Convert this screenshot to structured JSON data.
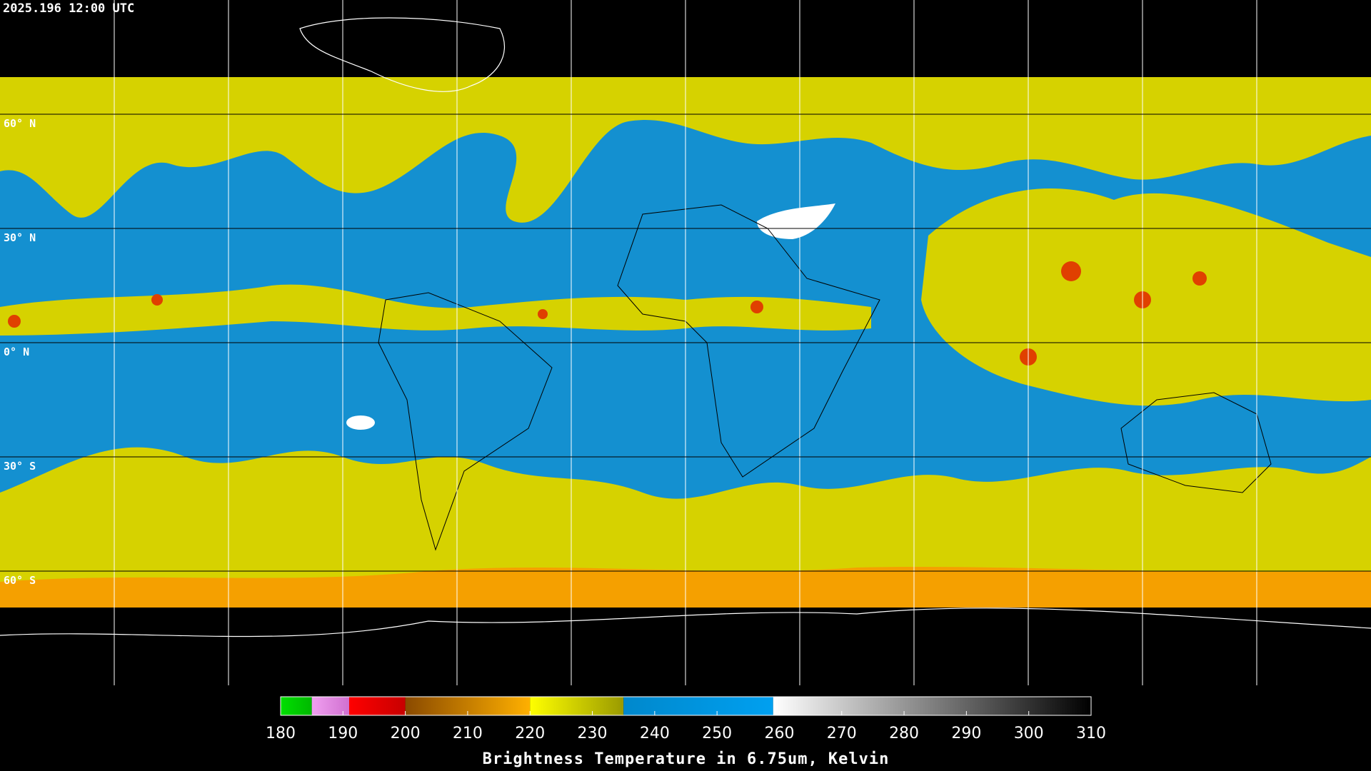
{
  "timestamp": "2025.196 12:00 UTC",
  "parallels": [
    {
      "value": 60,
      "label": "60° N"
    },
    {
      "value": 30,
      "label": "30° N"
    },
    {
      "value": 0,
      "label": "0° N"
    },
    {
      "value": -30,
      "label": "30° S"
    },
    {
      "value": -60,
      "label": "60° S"
    }
  ],
  "meridians": [
    -150,
    -120,
    -90,
    -60,
    -30,
    0,
    30,
    60,
    90,
    120,
    150
  ],
  "colorbar": {
    "title": "Brightness Temperature in 6.75um, Kelvin",
    "range": [
      180,
      310
    ],
    "ticks": [
      180,
      190,
      200,
      210,
      220,
      230,
      240,
      250,
      260,
      270,
      280,
      290,
      300,
      310
    ],
    "segments": [
      {
        "from": 180,
        "to": 185,
        "colors": [
          "#00e000",
          "#00b800"
        ]
      },
      {
        "from": 185,
        "to": 191,
        "colors": [
          "#f0a0f0",
          "#d070d0"
        ]
      },
      {
        "from": 191,
        "to": 200,
        "colors": [
          "#ff0000",
          "#c80000"
        ]
      },
      {
        "from": 200,
        "to": 220,
        "colors": [
          "#8a4a00",
          "#ffb000"
        ]
      },
      {
        "from": 220,
        "to": 235,
        "colors": [
          "#ffff00",
          "#9a9a00"
        ]
      },
      {
        "from": 235,
        "to": 259,
        "colors": [
          "#0088cc",
          "#00a0f0"
        ]
      },
      {
        "from": 259,
        "to": 310,
        "colors": [
          "#ffffff",
          "#000000"
        ]
      }
    ]
  }
}
